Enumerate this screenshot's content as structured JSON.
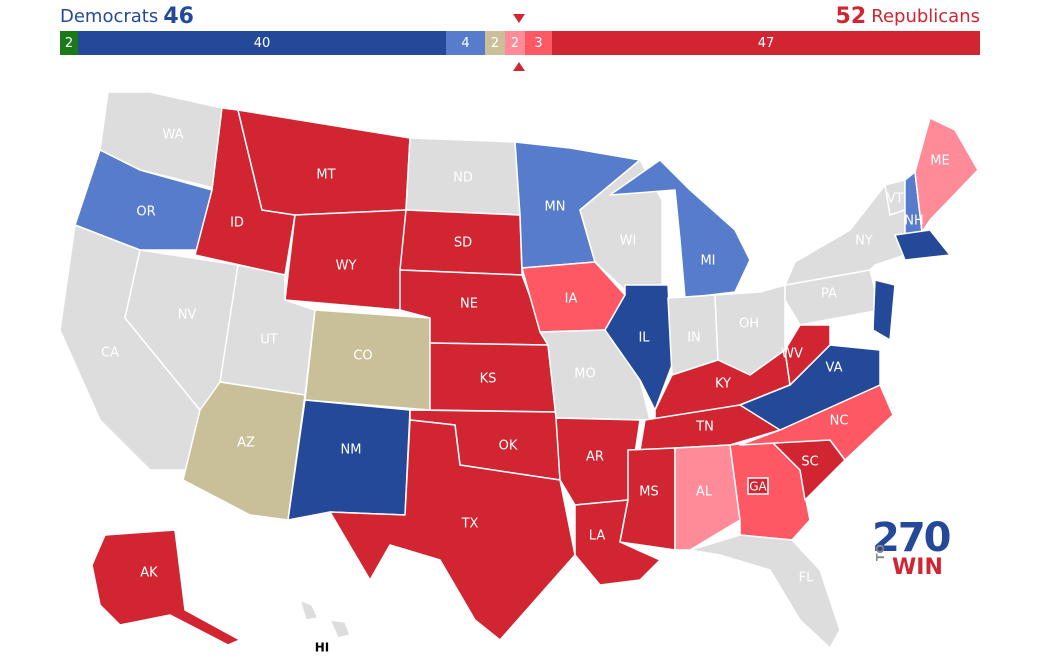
{
  "header": {
    "dem_label": "Democrats",
    "dem_seats": "46",
    "rep_seats": "52",
    "rep_label": "Republicans"
  },
  "bar": [
    {
      "key": "ind",
      "value": "2",
      "color": "#1a7a1a"
    },
    {
      "key": "safe_d",
      "value": "40",
      "color": "#244999"
    },
    {
      "key": "likely_d",
      "value": "4",
      "color": "#577ccc"
    },
    {
      "key": "tossup",
      "value": "2",
      "color": "#c9c09a"
    },
    {
      "key": "lean_r",
      "value": "2",
      "color": "#ff8b98"
    },
    {
      "key": "likely_r",
      "value": "3",
      "color": "#ff5865"
    },
    {
      "key": "safe_r",
      "value": "47",
      "color": "#d22532"
    }
  ],
  "colors": {
    "safe_r": "#d22532",
    "likely_r": "#ff5865",
    "lean_r": "#ff8b98",
    "safe_d": "#244999",
    "likely_d": "#577ccc",
    "tossup": "#c9c09a",
    "none": "#dddddd"
  },
  "states": {
    "WA": "WA",
    "OR": "OR",
    "CA": "CA",
    "ID": "ID",
    "NV": "NV",
    "MT": "MT",
    "WY": "WY",
    "UT": "UT",
    "AZ": "AZ",
    "CO": "CO",
    "NM": "NM",
    "ND": "ND",
    "SD": "SD",
    "NE": "NE",
    "KS": "KS",
    "OK": "OK",
    "TX": "TX",
    "MN": "MN",
    "IA": "IA",
    "MO": "MO",
    "AR": "AR",
    "LA": "LA",
    "WI": "WI",
    "IL": "IL",
    "MI": "MI",
    "IN": "IN",
    "OH": "OH",
    "KY": "KY",
    "TN": "TN",
    "MS": "MS",
    "AL": "AL",
    "GA": "GA",
    "FL": "FL",
    "SC": "SC",
    "NC": "NC",
    "VA": "VA",
    "WV": "WV",
    "PA": "PA",
    "NY": "NY",
    "VT": "VT",
    "NH": "NH",
    "ME": "ME",
    "AK": "AK",
    "HI": "HI",
    "GA2": "GA"
  },
  "logo": {
    "number": "270",
    "to": "TO",
    "win": "WIN"
  }
}
